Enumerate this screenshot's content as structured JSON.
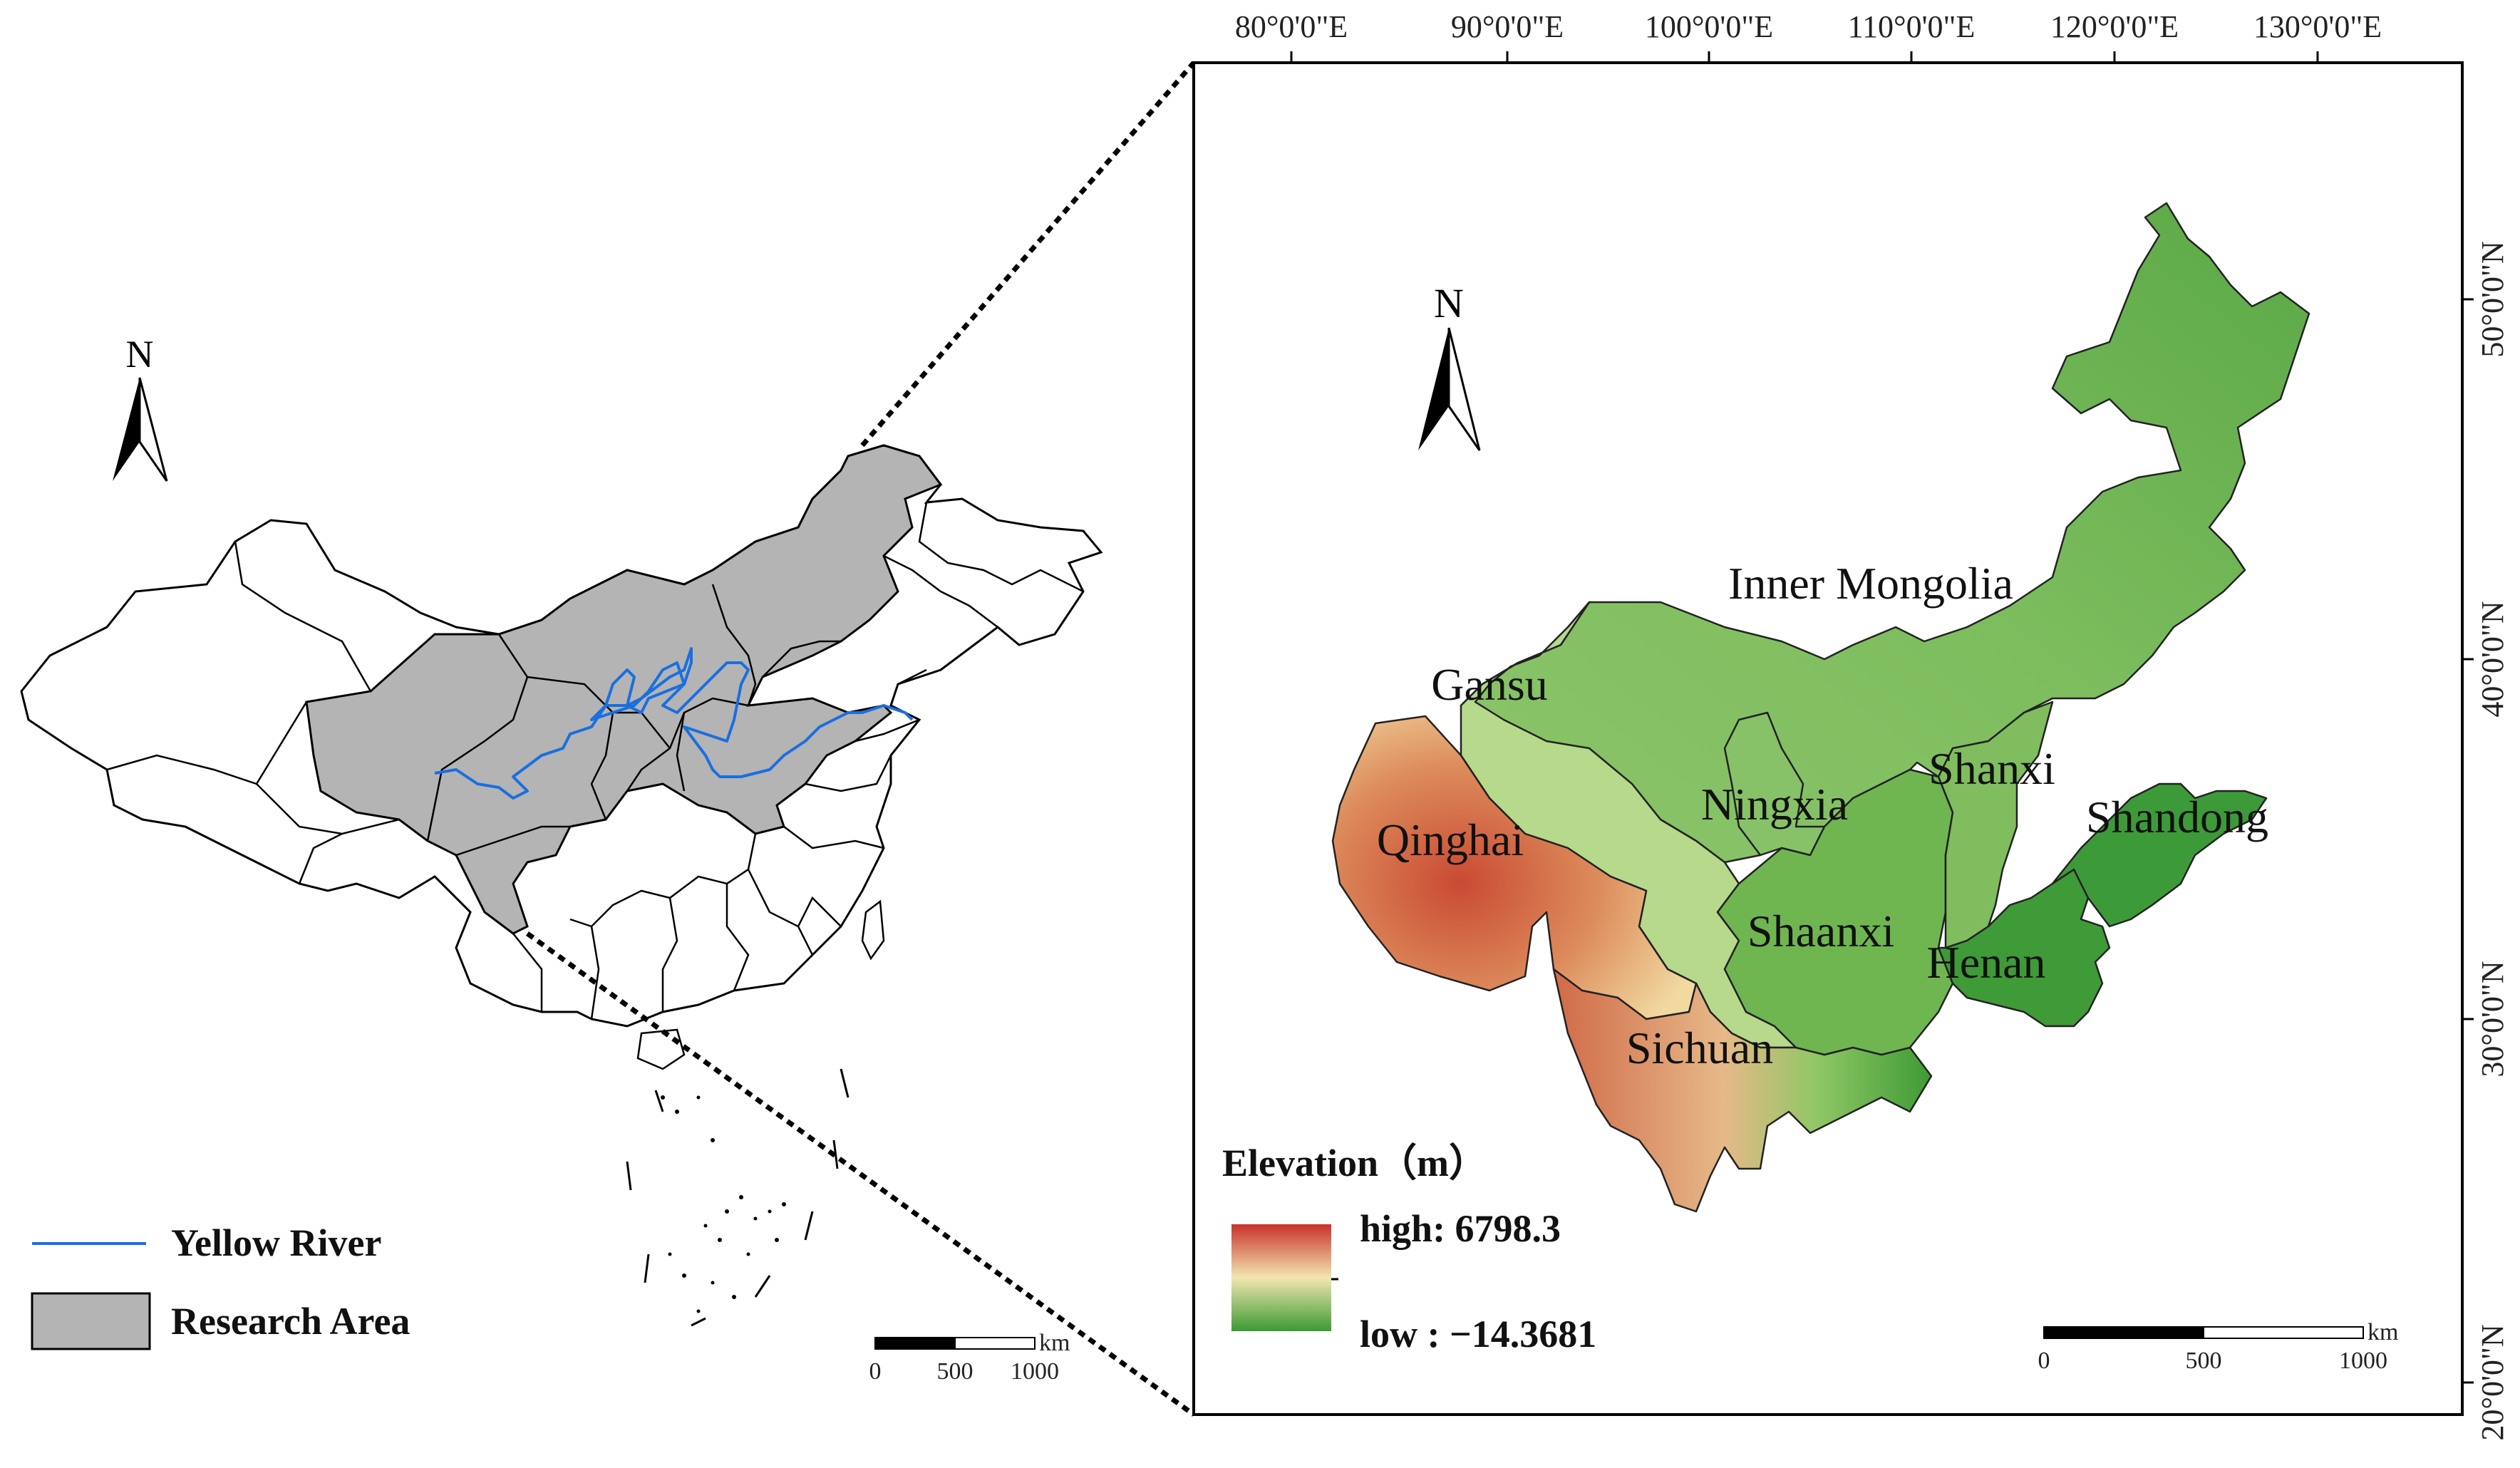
{
  "left_map": {
    "north_label": "N",
    "legend": {
      "river_label": "Yellow River",
      "area_label": "Research Area"
    },
    "scale": {
      "unit": "km",
      "ticks": [
        "0",
        "500",
        "1000"
      ]
    },
    "colors": {
      "research_area": "#b4b4b4",
      "river": "#1a6fe0",
      "boundary": "#000000"
    }
  },
  "right_map": {
    "north_label": "N",
    "longitude_labels": [
      "80°0'0\"E",
      "90°0'0\"E",
      "100°0'0\"E",
      "110°0'0\"E",
      "120°0'0\"E",
      "130°0'0\"E"
    ],
    "latitude_labels": [
      "50°0'0\"N",
      "40°0'0\"N",
      "30°0'0\"N",
      "20°0'0\"N"
    ],
    "provinces": [
      "Inner Mongolia",
      "Gansu",
      "Qinghai",
      "Ningxia",
      "Shanxi",
      "Shandong",
      "Shaanxi",
      "Henan",
      "Sichuan"
    ],
    "legend": {
      "title": "Elevation（m）",
      "high_label": "high: 6798.3",
      "low_label": "low : −14.3681",
      "high_value": 6798.3,
      "low_value": -14.3681,
      "colors": [
        "#c8322a",
        "#f2e6b0",
        "#3c9a34"
      ]
    },
    "scale": {
      "unit": "km",
      "ticks": [
        "0",
        "500",
        "1000"
      ]
    }
  }
}
